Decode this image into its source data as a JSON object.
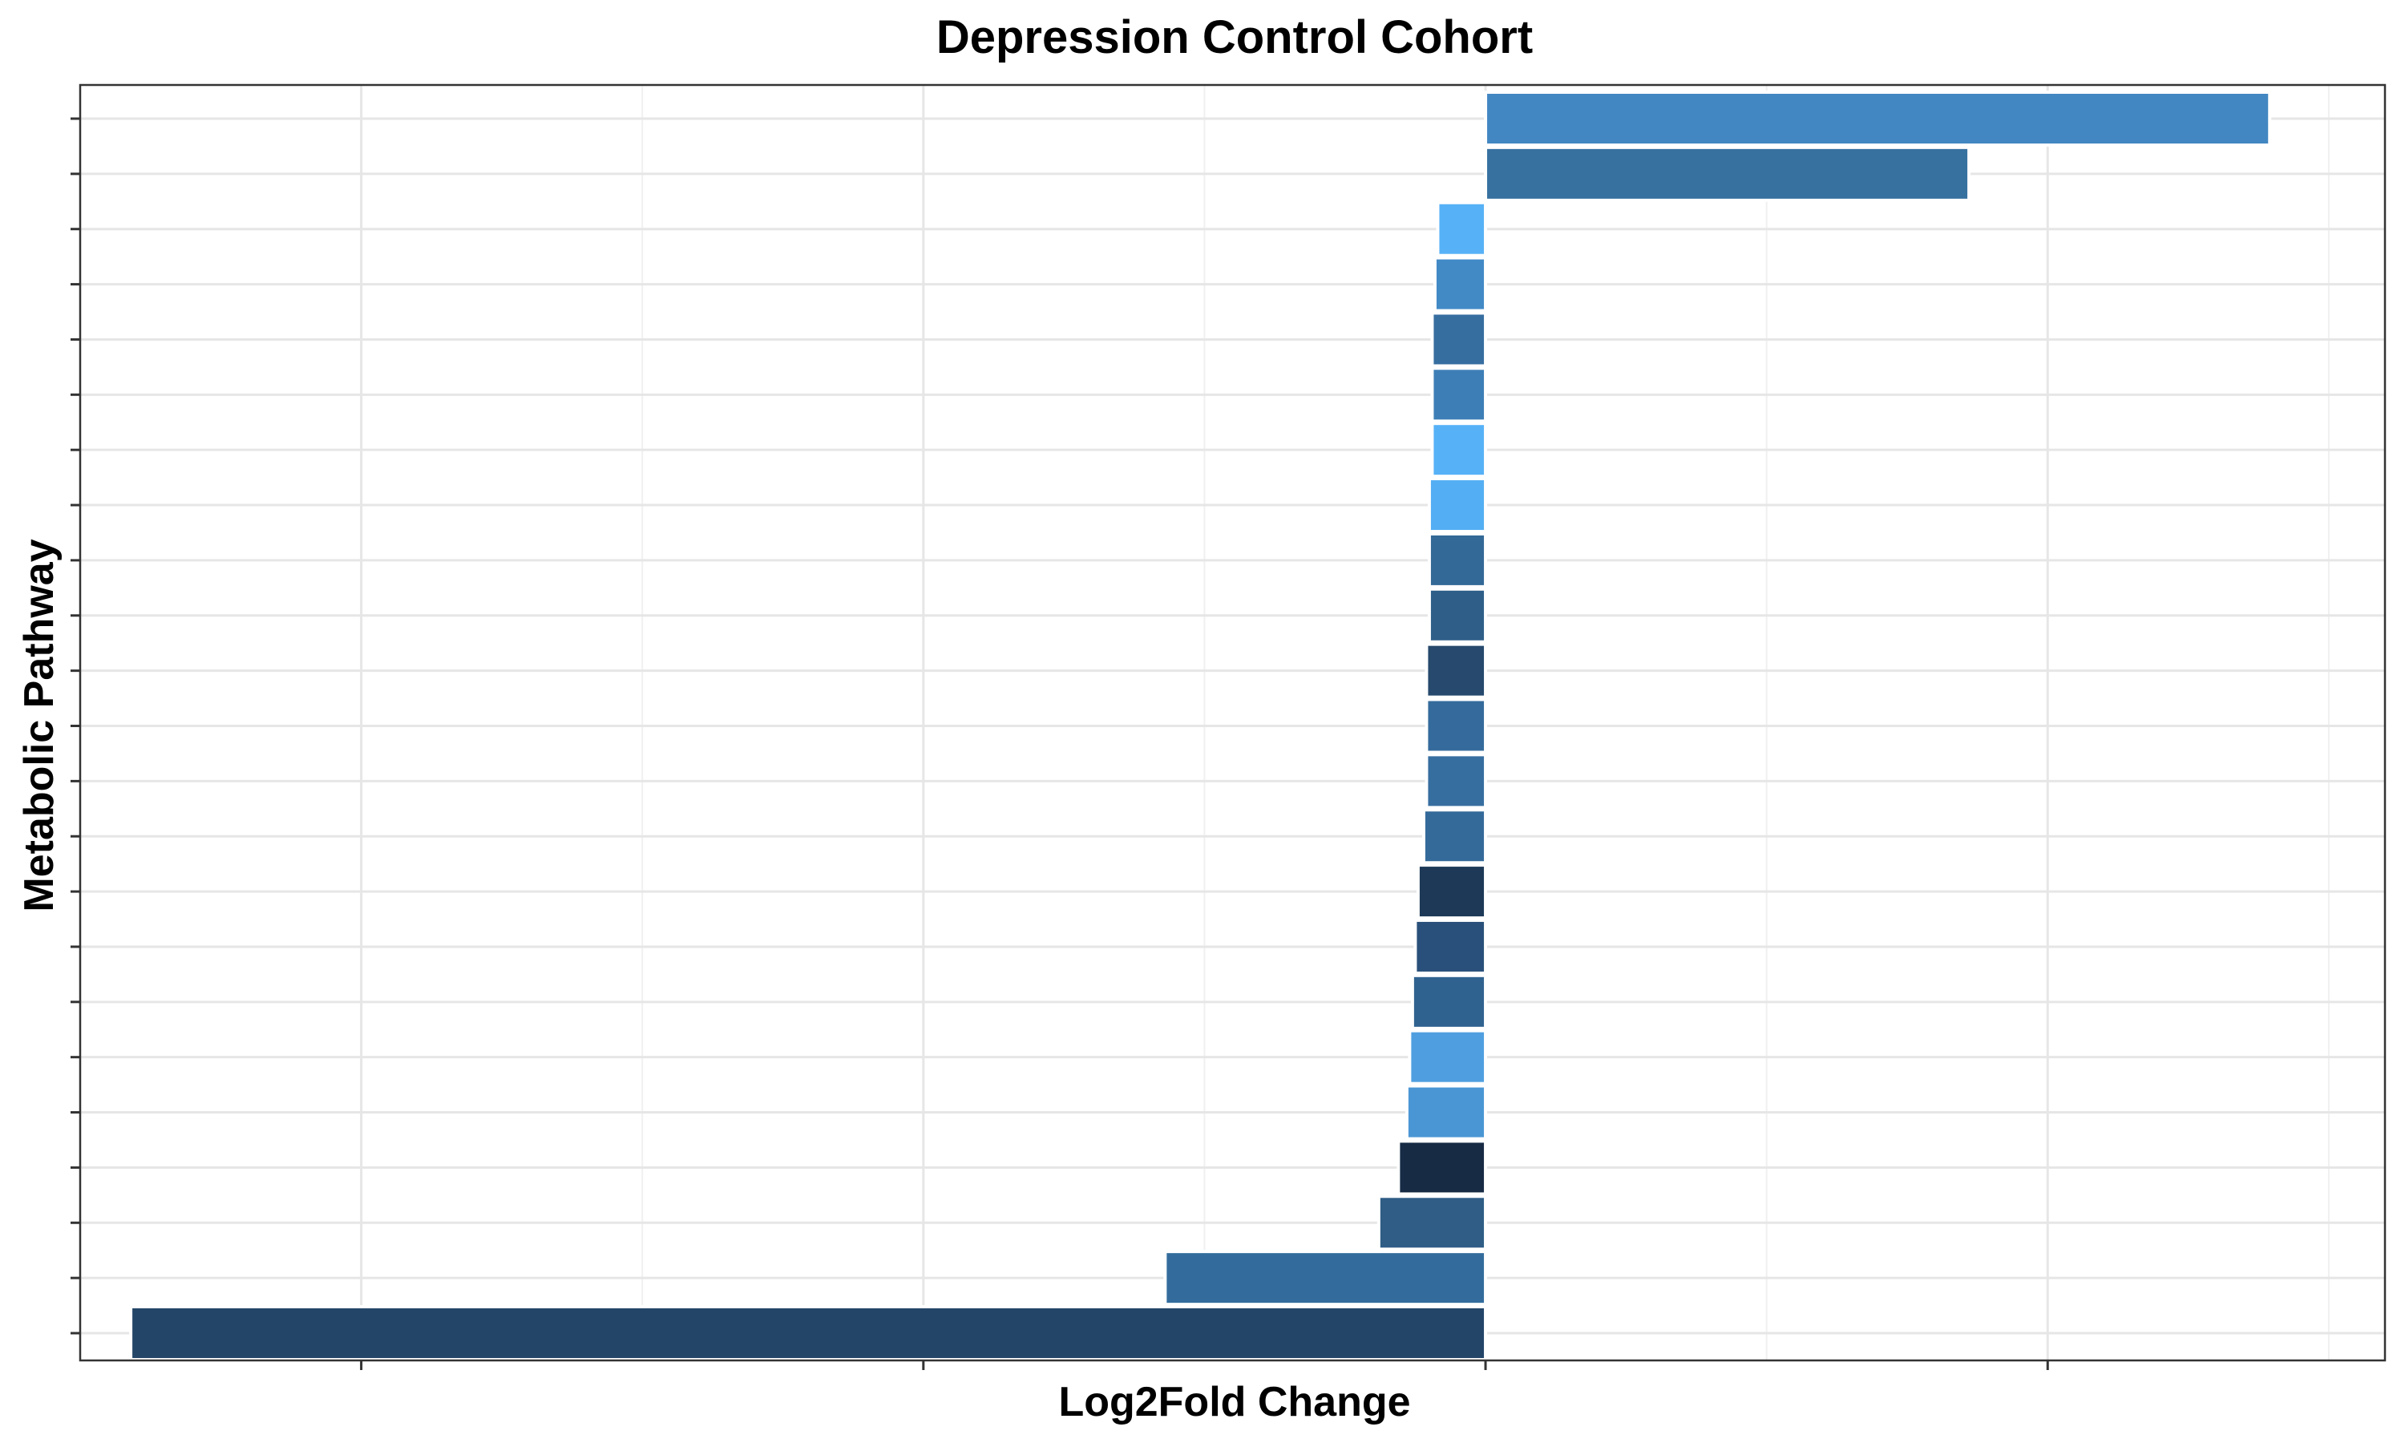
{
  "title": "Depression Control Cohort",
  "xlabel": "Log2Fold Change",
  "ylabel": "Metabolic Pathway",
  "chart_data": {
    "type": "bar",
    "orientation": "horizontal",
    "title": "Depression Control Cohort",
    "xlabel": "Log2Fold Change",
    "ylabel": "Metabolic Pathway",
    "x_tick_labels_shown": false,
    "y_tick_labels_shown": false,
    "xlim": [
      -5.0,
      3.2
    ],
    "x_major_ticks": [
      -4,
      -2,
      0,
      2
    ],
    "x_minor_ticks": [
      -5,
      -3,
      -1,
      1,
      3
    ],
    "grid": true,
    "legend": "none",
    "bars_top_to_bottom": [
      {
        "value": 2.79,
        "color": "#4287c2"
      },
      {
        "value": 1.72,
        "color": "#3671a0"
      },
      {
        "value": -0.17,
        "color": "#56b1f7"
      },
      {
        "value": -0.18,
        "color": "#428ac6"
      },
      {
        "value": -0.19,
        "color": "#376ea0"
      },
      {
        "value": -0.19,
        "color": "#3d7eb6"
      },
      {
        "value": -0.19,
        "color": "#56b1f7"
      },
      {
        "value": -0.2,
        "color": "#54aef3"
      },
      {
        "value": -0.2,
        "color": "#336996"
      },
      {
        "value": -0.2,
        "color": "#2f5f89"
      },
      {
        "value": -0.21,
        "color": "#26496d"
      },
      {
        "value": -0.21,
        "color": "#356b9c"
      },
      {
        "value": -0.21,
        "color": "#376ea0"
      },
      {
        "value": -0.22,
        "color": "#346a9a"
      },
      {
        "value": -0.24,
        "color": "#1d3957"
      },
      {
        "value": -0.25,
        "color": "#29507a"
      },
      {
        "value": -0.26,
        "color": "#30628f"
      },
      {
        "value": -0.27,
        "color": "#4f9fe0"
      },
      {
        "value": -0.28,
        "color": "#4a96d5"
      },
      {
        "value": -0.31,
        "color": "#172b45"
      },
      {
        "value": -0.38,
        "color": "#2f5d86"
      },
      {
        "value": -1.14,
        "color": "#336c9c"
      },
      {
        "value": -4.82,
        "color": "#234568"
      }
    ]
  }
}
